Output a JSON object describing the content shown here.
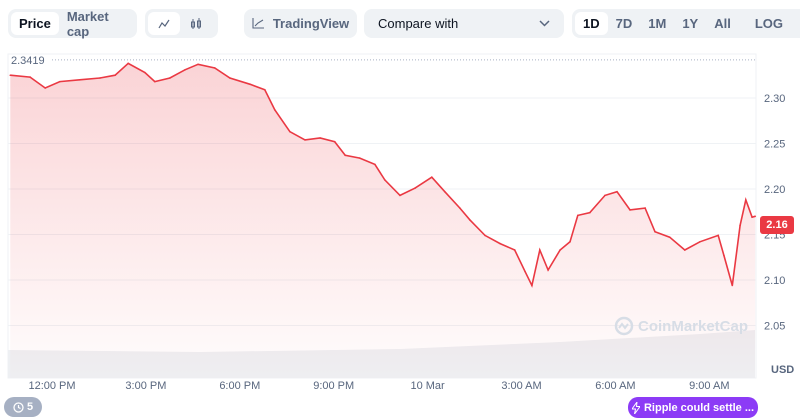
{
  "toolbar": {
    "type_tabs": [
      "Price",
      "Market cap"
    ],
    "active_type": "Price",
    "chart_style_icons": [
      "line-chart-icon",
      "candlestick-icon"
    ],
    "tradingview_label": "TradingView",
    "compare_placeholder": "Compare with",
    "ranges": [
      "1D",
      "7D",
      "1M",
      "1Y",
      "All"
    ],
    "active_range": "1D",
    "log_label": "LOG",
    "more_label": "···"
  },
  "chart_data": {
    "type": "line",
    "currency_label": "USD",
    "high_label": "2.3419",
    "current_price_label": "2.16",
    "ylim": [
      2.02,
      2.355
    ],
    "y_ticks": [
      "2.30",
      "2.25",
      "2.20",
      "2.15",
      "2.10",
      "2.05"
    ],
    "x_ticks": [
      {
        "label": "12:00 PM",
        "t": "09 12:00"
      },
      {
        "label": "3:00 PM",
        "t": "09 15:00"
      },
      {
        "label": "6:00 PM",
        "t": "09 18:00"
      },
      {
        "label": "9:00 PM",
        "t": "09 21:00"
      },
      {
        "label": "10 Mar",
        "t": "10 00:00"
      },
      {
        "label": "3:00 AM",
        "t": "10 03:00"
      },
      {
        "label": "6:00 AM",
        "t": "10 06:00"
      },
      {
        "label": "9:00 AM",
        "t": "10 09:00"
      }
    ],
    "line_color": "#ea3943",
    "series": [
      {
        "points": [
          [
            "09 10:40",
            2.325
          ],
          [
            "09 11:18",
            2.323
          ],
          [
            "09 11:47",
            2.311
          ],
          [
            "09 12:15",
            2.318
          ],
          [
            "09 12:53",
            2.32
          ],
          [
            "09 13:32",
            2.322
          ],
          [
            "09 14:01",
            2.325
          ],
          [
            "09 14:26",
            2.338
          ],
          [
            "09 14:58",
            2.328
          ],
          [
            "09 15:17",
            2.318
          ],
          [
            "09 15:46",
            2.322
          ],
          [
            "09 16:15",
            2.331
          ],
          [
            "09 16:40",
            2.337
          ],
          [
            "09 17:12",
            2.333
          ],
          [
            "09 17:41",
            2.322
          ],
          [
            "09 18:20",
            2.315
          ],
          [
            "09 18:48",
            2.309
          ],
          [
            "09 19:07",
            2.287
          ],
          [
            "09 19:36",
            2.263
          ],
          [
            "09 20:05",
            2.254
          ],
          [
            "09 20:34",
            2.256
          ],
          [
            "09 21:02",
            2.252
          ],
          [
            "09 21:22",
            2.237
          ],
          [
            "09 21:50",
            2.234
          ],
          [
            "09 22:19",
            2.227
          ],
          [
            "09 22:38",
            2.21
          ],
          [
            "09 23:07",
            2.193
          ],
          [
            "09 23:36",
            2.201
          ],
          [
            "10 00:08",
            2.213
          ],
          [
            "10 00:33",
            2.197
          ],
          [
            "10 01:02",
            2.179
          ],
          [
            "10 01:21",
            2.166
          ],
          [
            "10 01:50",
            2.149
          ],
          [
            "10 02:19",
            2.14
          ],
          [
            "10 02:47",
            2.133
          ],
          [
            "10 03:07",
            2.109
          ],
          [
            "10 03:20",
            2.094
          ],
          [
            "10 03:35",
            2.133
          ],
          [
            "10 03:51",
            2.111
          ],
          [
            "10 04:14",
            2.133
          ],
          [
            "10 04:33",
            2.142
          ],
          [
            "10 04:48",
            2.171
          ],
          [
            "10 05:11",
            2.174
          ],
          [
            "10 05:40",
            2.193
          ],
          [
            "10 06:03",
            2.197
          ],
          [
            "10 06:28",
            2.177
          ],
          [
            "10 06:57",
            2.179
          ],
          [
            "10 07:16",
            2.153
          ],
          [
            "10 07:44",
            2.147
          ],
          [
            "10 08:13",
            2.133
          ],
          [
            "10 08:42",
            2.142
          ],
          [
            "10 09:17",
            2.149
          ],
          [
            "10 09:28",
            2.127
          ],
          [
            "10 09:44",
            2.094
          ],
          [
            "10 09:59",
            2.16
          ],
          [
            "10 10:10",
            2.188
          ],
          [
            "10 10:22",
            2.169
          ],
          [
            "10 10:28",
            2.17
          ]
        ]
      }
    ]
  },
  "watermark": "CoinMarketCap",
  "history_badge": {
    "icon": "clock-history-icon",
    "count": "5"
  },
  "news_pill": {
    "icon": "lightning-icon",
    "text": "Ripple could settle ..."
  }
}
